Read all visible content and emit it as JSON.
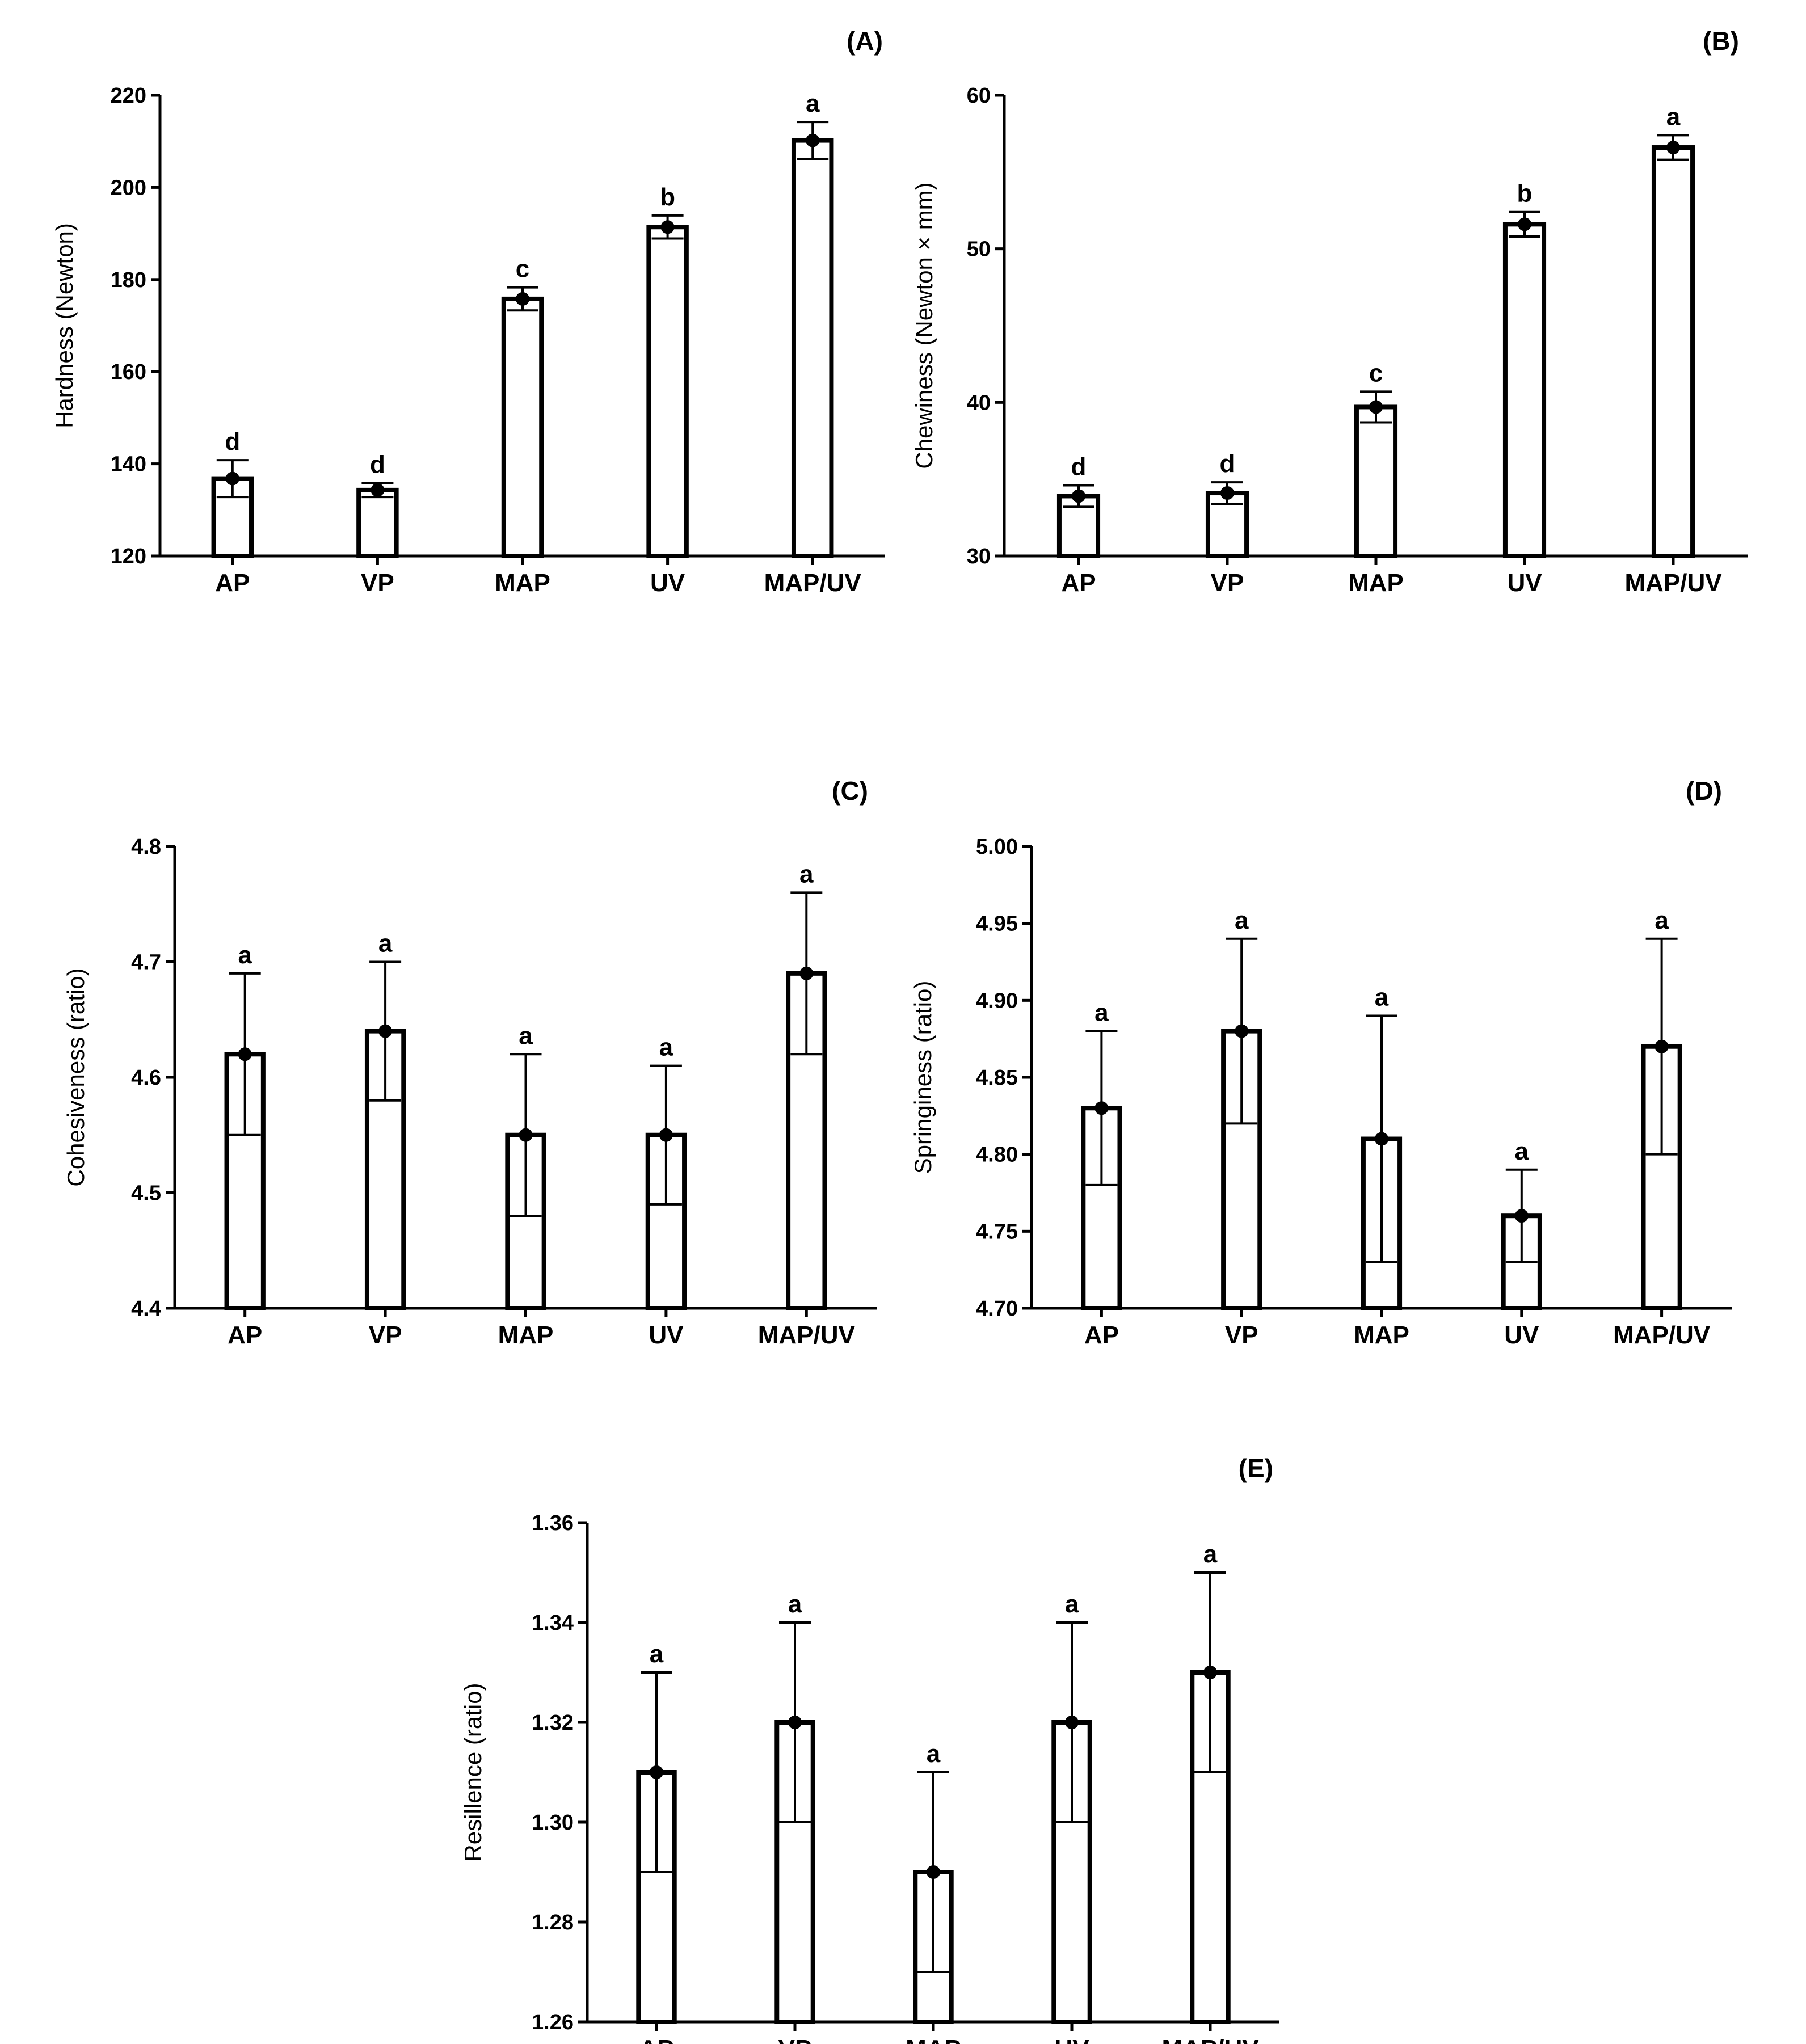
{
  "figure": {
    "colors": {
      "ink": "#000000",
      "bar_fill": "#ffffff"
    }
  },
  "chart_data": [
    {
      "id": "A",
      "type": "bar",
      "panel_label": "(A)",
      "title": "",
      "xlabel": "",
      "ylabel": "Hardness (Newton)",
      "ylim": [
        120,
        220
      ],
      "yticks": [
        120,
        140,
        160,
        180,
        200,
        220
      ],
      "ytick_labels": [
        "120",
        "140",
        "160",
        "180",
        "200",
        "220"
      ],
      "categories": [
        "AP",
        "VP",
        "MAP",
        "UV",
        "MAP/UV"
      ],
      "values": [
        136.8,
        134.3,
        175.8,
        191.4,
        210.2
      ],
      "errors": [
        4.0,
        1.5,
        2.5,
        2.5,
        4.0
      ],
      "letters": [
        "d",
        "d",
        "c",
        "b",
        "a"
      ]
    },
    {
      "id": "B",
      "type": "bar",
      "panel_label": "(B)",
      "title": "",
      "xlabel": "",
      "ylabel": "Chewiness (Newton × mm)",
      "ylim": [
        30,
        60
      ],
      "yticks": [
        30,
        40,
        50,
        60
      ],
      "ytick_labels": [
        "30",
        "40",
        "50",
        "60"
      ],
      "categories": [
        "AP",
        "VP",
        "MAP",
        "UV",
        "MAP/UV"
      ],
      "values": [
        33.9,
        34.1,
        39.7,
        51.6,
        56.6
      ],
      "errors": [
        0.7,
        0.7,
        1.0,
        0.8,
        0.8
      ],
      "letters": [
        "d",
        "d",
        "c",
        "b",
        "a"
      ]
    },
    {
      "id": "C",
      "type": "bar",
      "panel_label": "(C)",
      "title": "",
      "xlabel": "",
      "ylabel": "Cohesiveness (ratio)",
      "ylim": [
        4.4,
        4.8
      ],
      "yticks": [
        4.4,
        4.5,
        4.6,
        4.7,
        4.8
      ],
      "ytick_labels": [
        "4.4",
        "4.5",
        "4.6",
        "4.7",
        "4.8"
      ],
      "categories": [
        "AP",
        "VP",
        "MAP",
        "UV",
        "MAP/UV"
      ],
      "values": [
        4.62,
        4.64,
        4.55,
        4.55,
        4.69
      ],
      "errors": [
        0.07,
        0.06,
        0.07,
        0.06,
        0.07
      ],
      "letters": [
        "a",
        "a",
        "a",
        "a",
        "a"
      ]
    },
    {
      "id": "D",
      "type": "bar",
      "panel_label": "(D)",
      "title": "",
      "xlabel": "",
      "ylabel": "Springiness (ratio)",
      "ylim": [
        4.7,
        5.0
      ],
      "yticks": [
        4.7,
        4.75,
        4.8,
        4.85,
        4.9,
        4.95,
        5.0
      ],
      "ytick_labels": [
        "4.70",
        "4.75",
        "4.80",
        "4.85",
        "4.90",
        "4.95",
        "5.00"
      ],
      "categories": [
        "AP",
        "VP",
        "MAP",
        "UV",
        "MAP/UV"
      ],
      "values": [
        4.83,
        4.88,
        4.81,
        4.76,
        4.87
      ],
      "errors": [
        0.05,
        0.06,
        0.08,
        0.03,
        0.07
      ],
      "letters": [
        "a",
        "a",
        "a",
        "a",
        "a"
      ]
    },
    {
      "id": "E",
      "type": "bar",
      "panel_label": "(E)",
      "title": "",
      "xlabel": "",
      "ylabel": "Resillence (ratio)",
      "ylim": [
        1.26,
        1.36
      ],
      "yticks": [
        1.26,
        1.28,
        1.3,
        1.32,
        1.34,
        1.36
      ],
      "ytick_labels": [
        "1.26",
        "1.28",
        "1.30",
        "1.32",
        "1.34",
        "1.36"
      ],
      "categories": [
        "AP",
        "VP",
        "MAP",
        "UV",
        "MAP/UV"
      ],
      "values": [
        1.31,
        1.32,
        1.29,
        1.32,
        1.33
      ],
      "errors": [
        0.02,
        0.02,
        0.02,
        0.02,
        0.02
      ],
      "letters": [
        "a",
        "a",
        "a",
        "a",
        "a"
      ]
    }
  ]
}
